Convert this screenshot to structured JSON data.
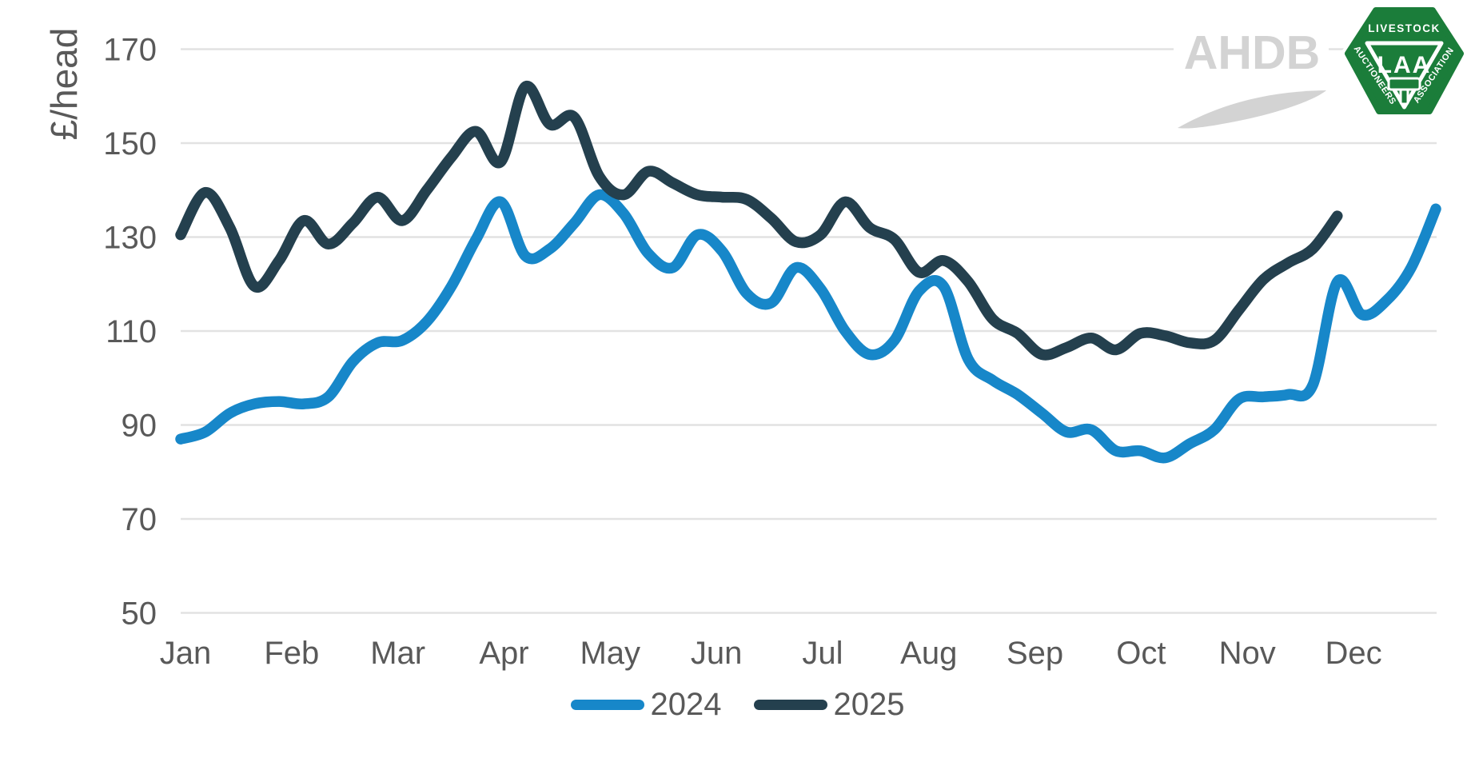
{
  "chart_data": {
    "type": "line",
    "title": "",
    "xlabel": "",
    "ylabel": "£/head",
    "ylim": [
      50,
      170
    ],
    "y_ticks": [
      170,
      150,
      130,
      110,
      90,
      70,
      50
    ],
    "categories": [
      "Jan",
      "Feb",
      "Mar",
      "Apr",
      "May",
      "Jun",
      "Jul",
      "Aug",
      "Sep",
      "Oct",
      "Nov",
      "Dec"
    ],
    "x_resolution": "weekly",
    "grid": true,
    "legend_position": "bottom",
    "grid_color": "#E2E2E2",
    "text_color": "#595959",
    "series": [
      {
        "name": "2024",
        "color": "#1787C9",
        "values": [
          87,
          88.5,
          92.5,
          94.5,
          95,
          94.5,
          96,
          103.5,
          107.5,
          108,
          112,
          119.5,
          129.5,
          137.5,
          126,
          127.5,
          133,
          139,
          135,
          126.5,
          123.5,
          130.5,
          127,
          118,
          116,
          123.5,
          119,
          110,
          105,
          108,
          118.5,
          119.5,
          104,
          99.5,
          96.5,
          92.5,
          88.5,
          89,
          84.5,
          84.5,
          83,
          86,
          89,
          95.5,
          96,
          96.5,
          98.5,
          120.5,
          113.5,
          116.5,
          123.5,
          136
        ]
      },
      {
        "name": "2025",
        "color": "#24404E",
        "values": [
          130.5,
          139.5,
          132,
          119.5,
          125,
          133.5,
          128.5,
          133,
          138.5,
          133.5,
          140,
          147,
          152.5,
          146,
          162,
          154,
          155.5,
          143,
          139,
          144,
          141.5,
          139,
          138.5,
          138,
          134,
          129,
          130.5,
          137.5,
          132,
          129.5,
          122.5,
          125,
          120.5,
          112.5,
          109.5,
          105,
          106.5,
          108.5,
          106,
          109.5,
          109,
          107.5,
          108,
          114.5,
          121,
          124.5,
          127.5,
          134.5
        ]
      }
    ]
  },
  "legend": {
    "items": [
      {
        "label": "2024"
      },
      {
        "label": "2025"
      }
    ]
  },
  "logos": {
    "ahdb": {
      "text": "AHDB",
      "color": "#D3D3D3"
    },
    "laa": {
      "top": "LIVESTOCK",
      "left": "AUCTIONEERS",
      "right": "ASSOCIATION",
      "center": "LAA",
      "green": "#1B7D3A"
    }
  }
}
